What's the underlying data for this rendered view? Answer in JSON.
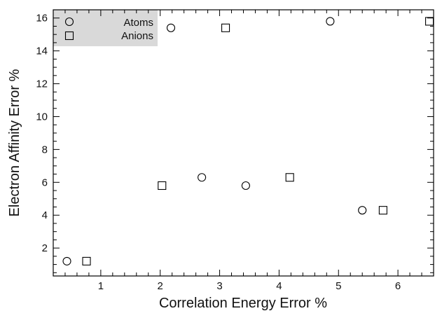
{
  "chart_data": {
    "type": "scatter",
    "title": "",
    "xlabel": "Correlation Energy Error %",
    "ylabel": "Electron Affinity Error %",
    "xlim": [
      0.2,
      6.6
    ],
    "ylim": [
      0.3,
      16.5
    ],
    "xticks": [
      "1",
      "2",
      "3",
      "4",
      "5",
      "6"
    ],
    "yticks": [
      "2",
      "4",
      "6",
      "8",
      "10",
      "12",
      "14",
      "16"
    ],
    "grid": false,
    "legend_position": "top-left",
    "series": [
      {
        "name": "Atoms",
        "marker": "circle",
        "points": [
          {
            "x": 0.43,
            "y": 1.2
          },
          {
            "x": 2.18,
            "y": 15.4
          },
          {
            "x": 2.7,
            "y": 6.3
          },
          {
            "x": 3.44,
            "y": 5.8
          },
          {
            "x": 4.86,
            "y": 15.8
          },
          {
            "x": 5.4,
            "y": 4.3
          }
        ]
      },
      {
        "name": "Anions",
        "marker": "square",
        "points": [
          {
            "x": 0.76,
            "y": 1.2
          },
          {
            "x": 2.03,
            "y": 5.8
          },
          {
            "x": 3.1,
            "y": 15.4
          },
          {
            "x": 4.18,
            "y": 6.3
          },
          {
            "x": 5.75,
            "y": 4.3
          },
          {
            "x": 6.53,
            "y": 15.8
          }
        ]
      }
    ]
  },
  "colors": {
    "marker_stroke": "#000000",
    "axes": "#000000",
    "legend_background": "#d9d9d9"
  }
}
